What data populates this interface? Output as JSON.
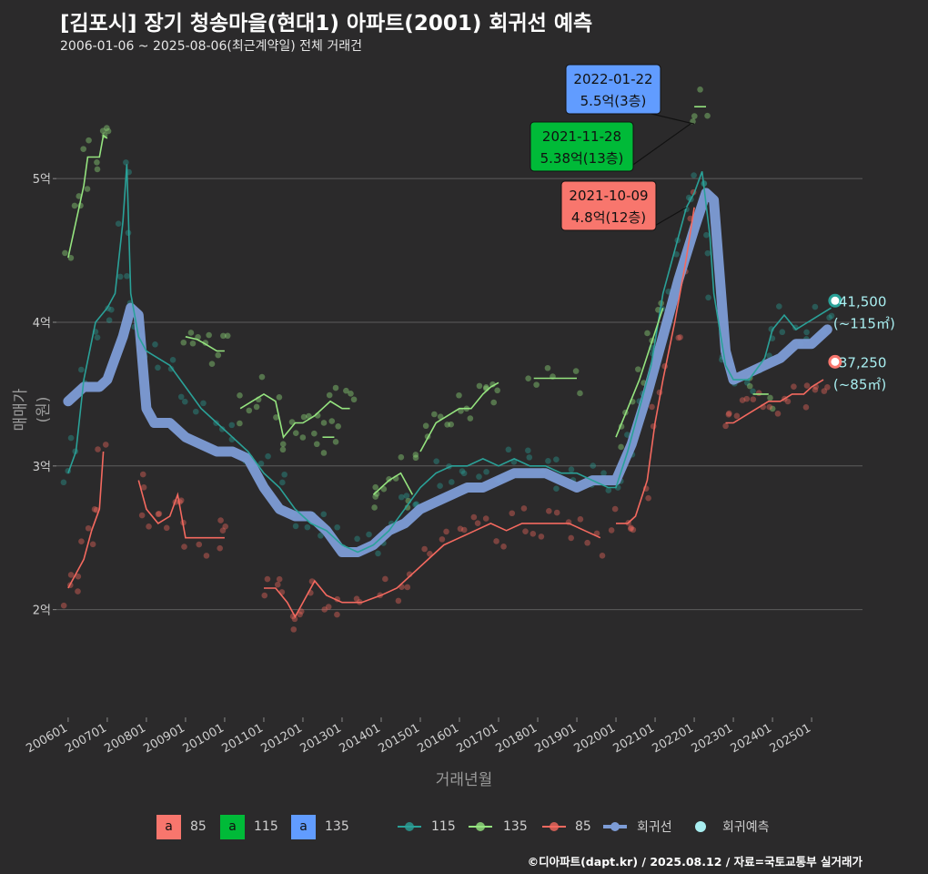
{
  "title": "[김포시] 장기 청송마을(현대1) 아파트(2001) 회귀선 예측",
  "subtitle": "2006-01-06 ~ 2025-08-06(최근계약일) 전체 거래건",
  "caption": "©디아파트(dapt.kr) / 2025.08.12 / 자료=국토교통부 실거래가",
  "colors": {
    "background": "#2b2a2b",
    "c85": "#f8766d",
    "c115": "#00ba38",
    "c135": "#619cff",
    "line85": "#f4695f",
    "line115": "#2aa198",
    "line135": "#95e47f",
    "regression": "#7d9cd6",
    "forecast": "#a8eef0"
  },
  "chart_data": {
    "type": "line",
    "xlabel": "거래년월",
    "ylabel": "매매가(원)",
    "ylim": [
      1.25,
      5.85
    ],
    "y_ticks": [
      {
        "value": 2,
        "label": "2억"
      },
      {
        "value": 3,
        "label": "3억"
      },
      {
        "value": 4,
        "label": "4억"
      },
      {
        "value": 5,
        "label": "5억"
      }
    ],
    "x_range": [
      2005.7,
      2026.3
    ],
    "x_ticks": [
      {
        "value": 2006.0,
        "label": "200601"
      },
      {
        "value": 2007.0,
        "label": "200701"
      },
      {
        "value": 2008.0,
        "label": "200801"
      },
      {
        "value": 2009.0,
        "label": "200901"
      },
      {
        "value": 2010.0,
        "label": "201001"
      },
      {
        "value": 2011.0,
        "label": "201101"
      },
      {
        "value": 2012.0,
        "label": "201201"
      },
      {
        "value": 2013.0,
        "label": "201301"
      },
      {
        "value": 2014.0,
        "label": "201401"
      },
      {
        "value": 2015.0,
        "label": "201501"
      },
      {
        "value": 2016.0,
        "label": "201601"
      },
      {
        "value": 2017.0,
        "label": "201701"
      },
      {
        "value": 2018.0,
        "label": "201801"
      },
      {
        "value": 2019.0,
        "label": "201901"
      },
      {
        "value": 2020.0,
        "label": "202001"
      },
      {
        "value": 2021.0,
        "label": "202101"
      },
      {
        "value": 2022.0,
        "label": "202201"
      },
      {
        "value": 2023.0,
        "label": "202301"
      },
      {
        "value": 2024.0,
        "label": "202401"
      },
      {
        "value": 2025.0,
        "label": "202501"
      }
    ],
    "series": [
      {
        "name": "115",
        "color": "#2aa198",
        "points": [
          [
            2006.0,
            2.95
          ],
          [
            2006.2,
            3.1
          ],
          [
            2006.4,
            3.6
          ],
          [
            2006.7,
            4.0
          ],
          [
            2007.0,
            4.1
          ],
          [
            2007.2,
            4.2
          ],
          [
            2007.4,
            4.7
          ],
          [
            2007.5,
            5.1
          ],
          [
            2007.6,
            4.2
          ],
          [
            2007.8,
            3.9
          ],
          [
            2008.0,
            3.8
          ],
          [
            2008.3,
            3.75
          ],
          [
            2008.6,
            3.7
          ],
          [
            2009.0,
            3.55
          ],
          [
            2009.4,
            3.4
          ],
          [
            2009.8,
            3.3
          ],
          [
            2010.2,
            3.2
          ],
          [
            2010.6,
            3.1
          ],
          [
            2011.0,
            2.95
          ],
          [
            2011.4,
            2.85
          ],
          [
            2011.8,
            2.7
          ],
          [
            2012.2,
            2.6
          ],
          [
            2012.6,
            2.55
          ],
          [
            2013.0,
            2.45
          ],
          [
            2013.4,
            2.4
          ],
          [
            2013.8,
            2.45
          ],
          [
            2014.2,
            2.55
          ],
          [
            2014.6,
            2.7
          ],
          [
            2015.0,
            2.85
          ],
          [
            2015.4,
            2.95
          ],
          [
            2015.8,
            3.0
          ],
          [
            2016.2,
            3.0
          ],
          [
            2016.6,
            3.05
          ],
          [
            2017.0,
            3.0
          ],
          [
            2017.4,
            3.05
          ],
          [
            2017.8,
            3.0
          ],
          [
            2018.2,
            3.0
          ],
          [
            2018.6,
            2.95
          ],
          [
            2019.0,
            2.95
          ],
          [
            2019.4,
            2.9
          ],
          [
            2019.8,
            2.85
          ],
          [
            2020.0,
            2.85
          ],
          [
            2020.3,
            3.1
          ],
          [
            2020.6,
            3.4
          ],
          [
            2020.9,
            3.7
          ],
          [
            2021.2,
            4.2
          ],
          [
            2021.5,
            4.5
          ],
          [
            2021.8,
            4.8
          ],
          [
            2022.0,
            4.9
          ],
          [
            2022.2,
            5.05
          ],
          [
            2022.4,
            4.6
          ],
          [
            2022.5,
            4.2
          ],
          [
            2022.8,
            3.7
          ],
          [
            2023.0,
            3.6
          ],
          [
            2023.4,
            3.6
          ],
          [
            2023.8,
            3.75
          ],
          [
            2024.0,
            3.95
          ],
          [
            2024.3,
            4.05
          ],
          [
            2024.6,
            3.95
          ],
          [
            2024.9,
            4.0
          ],
          [
            2025.2,
            4.05
          ],
          [
            2025.5,
            4.1
          ]
        ]
      },
      {
        "name": "135",
        "color": "#95e47f",
        "segments": [
          [
            [
              2006.0,
              4.45
            ],
            [
              2006.2,
              4.7
            ],
            [
              2006.4,
              4.95
            ],
            [
              2006.5,
              5.15
            ],
            [
              2006.8,
              5.15
            ],
            [
              2006.9,
              5.3
            ],
            [
              2007.0,
              5.28
            ]
          ],
          [
            [
              2009.0,
              3.9
            ],
            [
              2009.3,
              3.88
            ],
            [
              2009.5,
              3.85
            ],
            [
              2009.8,
              3.8
            ],
            [
              2010.0,
              3.8
            ]
          ],
          [
            [
              2010.4,
              3.4
            ],
            [
              2010.7,
              3.45
            ],
            [
              2011.0,
              3.5
            ],
            [
              2011.3,
              3.45
            ],
            [
              2011.5,
              3.2
            ],
            [
              2011.8,
              3.3
            ],
            [
              2012.0,
              3.3
            ],
            [
              2012.3,
              3.35
            ],
            [
              2012.5,
              3.4
            ],
            [
              2012.7,
              3.45
            ],
            [
              2013.0,
              3.4
            ],
            [
              2013.2,
              3.4
            ]
          ],
          [
            [
              2012.5,
              3.2
            ],
            [
              2012.8,
              3.2
            ]
          ],
          [
            [
              2013.8,
              2.8
            ],
            [
              2014.0,
              2.85
            ],
            [
              2014.2,
              2.9
            ],
            [
              2014.5,
              2.95
            ],
            [
              2014.8,
              2.8
            ]
          ],
          [
            [
              2015.0,
              3.1
            ],
            [
              2015.2,
              3.2
            ],
            [
              2015.4,
              3.3
            ],
            [
              2015.7,
              3.35
            ],
            [
              2016.0,
              3.4
            ],
            [
              2016.3,
              3.4
            ],
            [
              2016.6,
              3.5
            ],
            [
              2016.8,
              3.55
            ],
            [
              2017.0,
              3.58
            ]
          ],
          [
            [
              2017.9,
              3.61
            ],
            [
              2018.4,
              3.61
            ],
            [
              2019.0,
              3.61
            ]
          ],
          [
            [
              2020.0,
              3.2
            ],
            [
              2020.3,
              3.4
            ],
            [
              2020.6,
              3.6
            ],
            [
              2020.9,
              3.85
            ],
            [
              2021.2,
              4.1
            ]
          ],
          [
            [
              2022.0,
              5.5
            ],
            [
              2022.3,
              5.5
            ]
          ],
          [
            [
              2023.5,
              3.5
            ],
            [
              2023.9,
              3.5
            ]
          ]
        ]
      },
      {
        "name": "85",
        "color": "#f4695f",
        "segments": [
          [
            [
              2006.0,
              2.15
            ],
            [
              2006.2,
              2.25
            ],
            [
              2006.4,
              2.35
            ],
            [
              2006.6,
              2.55
            ],
            [
              2006.8,
              2.7
            ],
            [
              2006.9,
              3.1
            ]
          ],
          [
            [
              2007.8,
              2.9
            ],
            [
              2008.0,
              2.7
            ],
            [
              2008.3,
              2.6
            ],
            [
              2008.6,
              2.65
            ],
            [
              2008.8,
              2.8
            ],
            [
              2009.0,
              2.5
            ],
            [
              2009.4,
              2.5
            ],
            [
              2009.8,
              2.5
            ],
            [
              2010.0,
              2.5
            ]
          ],
          [
            [
              2011.0,
              2.15
            ],
            [
              2011.3,
              2.15
            ],
            [
              2011.6,
              2.05
            ],
            [
              2011.8,
              1.95
            ],
            [
              2012.0,
              2.05
            ],
            [
              2012.3,
              2.2
            ],
            [
              2012.6,
              2.1
            ],
            [
              2013.0,
              2.05
            ],
            [
              2013.5,
              2.05
            ],
            [
              2014.0,
              2.1
            ],
            [
              2014.4,
              2.15
            ],
            [
              2014.8,
              2.25
            ],
            [
              2015.2,
              2.35
            ],
            [
              2015.6,
              2.45
            ],
            [
              2016.0,
              2.5
            ],
            [
              2016.4,
              2.55
            ],
            [
              2016.8,
              2.6
            ],
            [
              2017.2,
              2.55
            ],
            [
              2017.6,
              2.6
            ],
            [
              2018.0,
              2.6
            ],
            [
              2018.4,
              2.6
            ],
            [
              2018.8,
              2.6
            ],
            [
              2019.2,
              2.55
            ],
            [
              2019.6,
              2.5
            ]
          ],
          [
            [
              2020.0,
              2.6
            ],
            [
              2020.3,
              2.6
            ],
            [
              2020.5,
              2.65
            ],
            [
              2020.8,
              2.9
            ],
            [
              2021.0,
              3.3
            ],
            [
              2021.2,
              3.6
            ],
            [
              2021.5,
              4.0
            ],
            [
              2021.8,
              4.45
            ],
            [
              2022.0,
              4.8
            ]
          ],
          [
            [
              2022.8,
              3.3
            ],
            [
              2023.0,
              3.3
            ],
            [
              2023.3,
              3.35
            ],
            [
              2023.6,
              3.4
            ],
            [
              2023.9,
              3.45
            ],
            [
              2024.2,
              3.45
            ],
            [
              2024.5,
              3.5
            ],
            [
              2024.8,
              3.5
            ],
            [
              2025.0,
              3.55
            ],
            [
              2025.3,
              3.6
            ]
          ]
        ]
      }
    ],
    "regression": {
      "name": "회귀선",
      "color": "#7d9cd6",
      "points": [
        [
          2006.0,
          3.45
        ],
        [
          2006.2,
          3.5
        ],
        [
          2006.4,
          3.55
        ],
        [
          2006.8,
          3.55
        ],
        [
          2007.0,
          3.6
        ],
        [
          2007.2,
          3.75
        ],
        [
          2007.4,
          3.9
        ],
        [
          2007.6,
          4.1
        ],
        [
          2007.8,
          4.05
        ],
        [
          2008.0,
          3.4
        ],
        [
          2008.2,
          3.3
        ],
        [
          2008.6,
          3.3
        ],
        [
          2009.0,
          3.2
        ],
        [
          2009.4,
          3.15
        ],
        [
          2009.8,
          3.1
        ],
        [
          2010.2,
          3.1
        ],
        [
          2010.6,
          3.05
        ],
        [
          2011.0,
          2.85
        ],
        [
          2011.4,
          2.7
        ],
        [
          2011.8,
          2.65
        ],
        [
          2012.2,
          2.65
        ],
        [
          2012.6,
          2.55
        ],
        [
          2013.0,
          2.4
        ],
        [
          2013.4,
          2.4
        ],
        [
          2013.8,
          2.45
        ],
        [
          2014.2,
          2.55
        ],
        [
          2014.6,
          2.6
        ],
        [
          2015.0,
          2.7
        ],
        [
          2015.4,
          2.75
        ],
        [
          2015.8,
          2.8
        ],
        [
          2016.2,
          2.85
        ],
        [
          2016.6,
          2.85
        ],
        [
          2017.0,
          2.9
        ],
        [
          2017.4,
          2.95
        ],
        [
          2017.8,
          2.95
        ],
        [
          2018.2,
          2.95
        ],
        [
          2018.6,
          2.9
        ],
        [
          2019.0,
          2.85
        ],
        [
          2019.4,
          2.9
        ],
        [
          2019.8,
          2.9
        ],
        [
          2020.0,
          2.9
        ],
        [
          2020.4,
          3.15
        ],
        [
          2020.8,
          3.5
        ],
        [
          2021.2,
          3.9
        ],
        [
          2021.6,
          4.3
        ],
        [
          2022.0,
          4.65
        ],
        [
          2022.3,
          4.9
        ],
        [
          2022.5,
          4.85
        ],
        [
          2022.8,
          3.8
        ],
        [
          2023.0,
          3.6
        ],
        [
          2023.4,
          3.65
        ],
        [
          2023.8,
          3.7
        ],
        [
          2024.2,
          3.75
        ],
        [
          2024.6,
          3.85
        ],
        [
          2025.0,
          3.85
        ],
        [
          2025.4,
          3.95
        ]
      ]
    },
    "forecast": [
      {
        "x": 2025.6,
        "y": 4.15,
        "color": "#2aa198",
        "label": "41,500",
        "sub": "(~115㎡)"
      },
      {
        "x": 2025.6,
        "y": 3.725,
        "color": "#f8766d",
        "label": "37,250",
        "sub": "(~85㎡)"
      }
    ],
    "annotations": [
      {
        "date": "2022-01-22",
        "value": "5.5억(3층)",
        "fill": "#619cff",
        "x": 2022.0,
        "y": 5.38
      },
      {
        "date": "2021-11-28",
        "value": "5.38억(13층)",
        "fill": "#00ba38",
        "x": 2021.9,
        "y": 5.38
      },
      {
        "date": "2021-10-09",
        "value": "4.8억(12층)",
        "fill": "#f8766d",
        "x": 2021.8,
        "y": 4.8
      }
    ]
  },
  "legend": {
    "box_items": [
      {
        "glyph": "a",
        "label": "85",
        "color": "#f8766d"
      },
      {
        "glyph": "a",
        "label": "115",
        "color": "#00ba38"
      },
      {
        "glyph": "a",
        "label": "135",
        "color": "#619cff"
      }
    ],
    "line_items": [
      {
        "label": "115",
        "color": "#2aa198"
      },
      {
        "label": "135",
        "color": "#95e47f"
      },
      {
        "label": "85",
        "color": "#f4695f"
      },
      {
        "label": "회귀선",
        "color": "#7d9cd6"
      },
      {
        "label": "회귀예측",
        "color": "#a8eef0"
      }
    ]
  }
}
